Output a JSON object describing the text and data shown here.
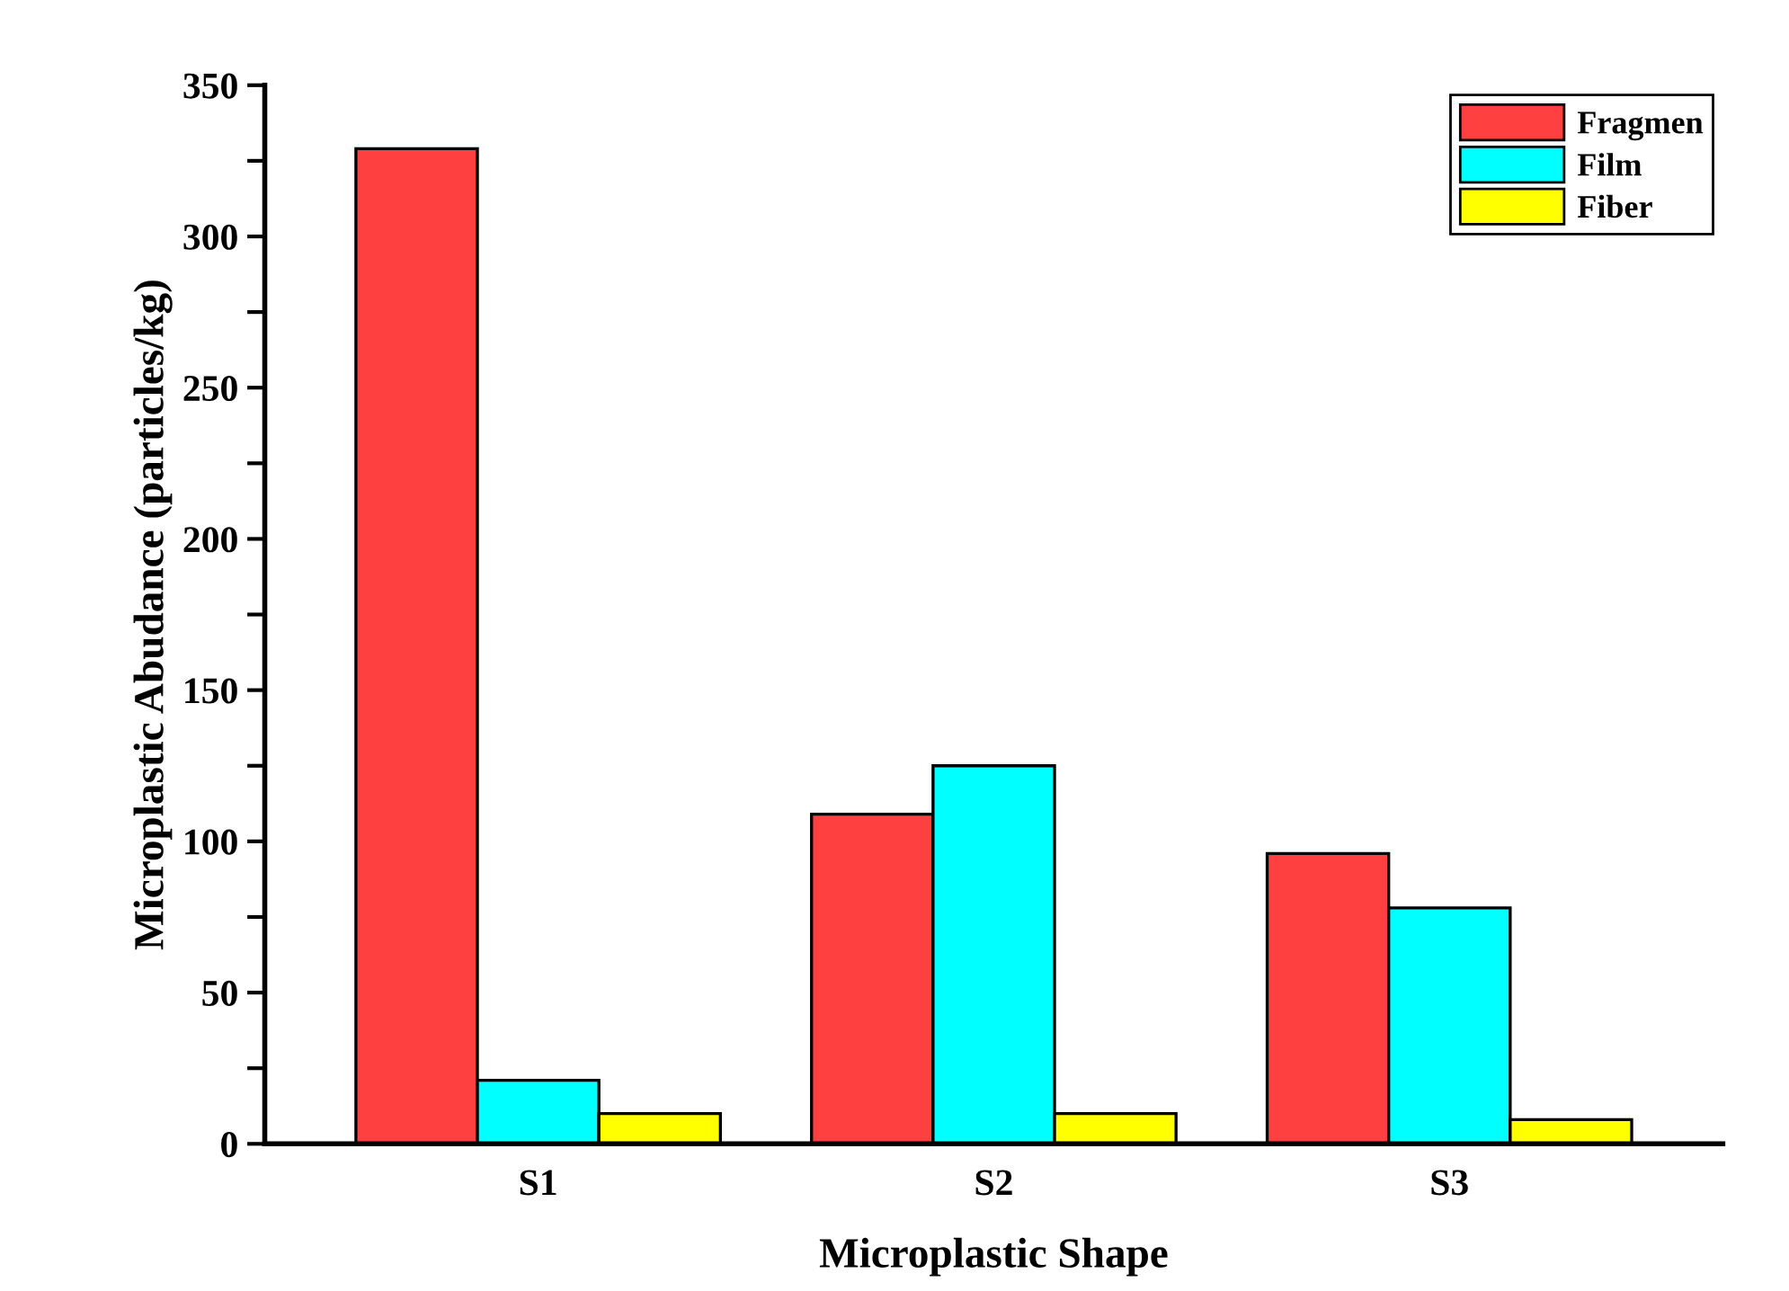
{
  "chart_data": {
    "type": "bar",
    "xlabel": "Microplastic Shape",
    "ylabel": "Microplastic Abudance (particles/kg)",
    "categories": [
      "S1",
      "S2",
      "S3"
    ],
    "series": [
      {
        "name": "Fragmen",
        "color": "#ff4040",
        "values": [
          329,
          109,
          96
        ]
      },
      {
        "name": "Film",
        "color": "#00ffff",
        "values": [
          21,
          125,
          78
        ]
      },
      {
        "name": "Fiber",
        "color": "#ffff00",
        "values": [
          10,
          10,
          8
        ]
      }
    ],
    "ylim": [
      0,
      350
    ],
    "yticks": [
      0,
      {
        "value": 25,
        "label": null
      },
      50,
      {
        "value": 75,
        "label": null
      },
      100,
      {
        "value": 125,
        "label": null
      },
      150,
      {
        "value": 175,
        "label": null
      },
      200,
      {
        "value": 225,
        "label": null
      },
      250,
      {
        "value": 275,
        "label": null
      },
      300,
      {
        "value": 325,
        "label": null
      },
      350
    ],
    "grid": false,
    "legend": "top right"
  }
}
